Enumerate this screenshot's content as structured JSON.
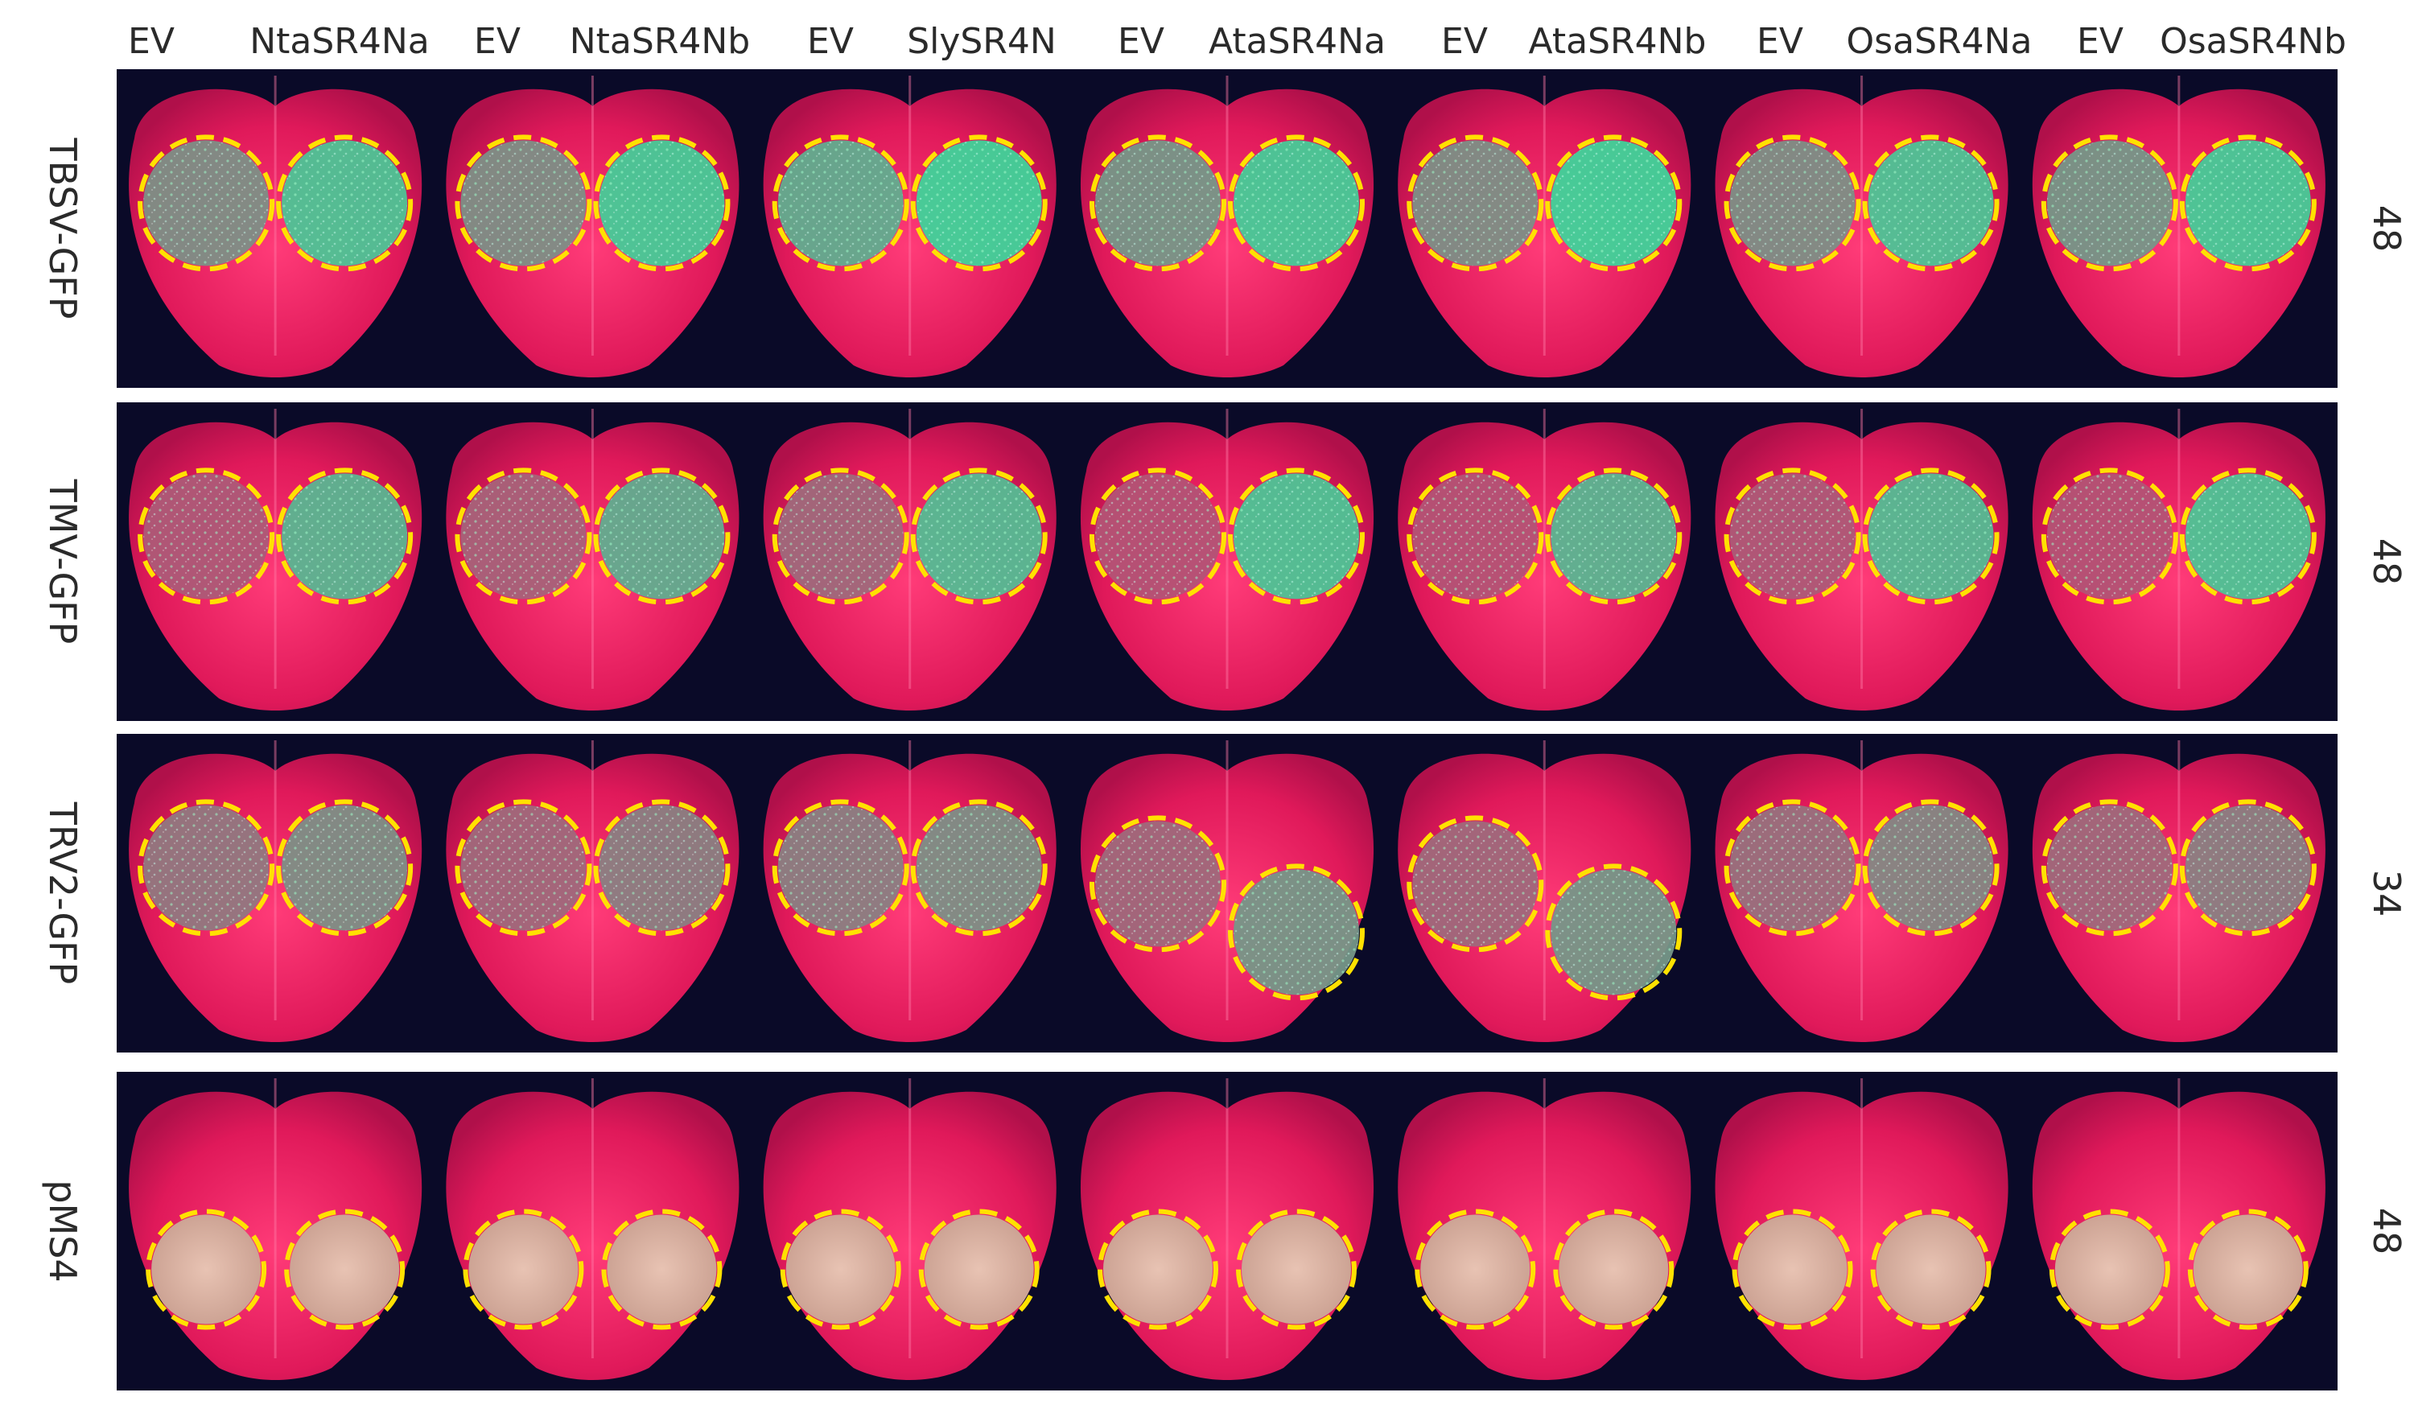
{
  "column_headers": [
    "EV",
    "NtaSR4Na",
    "EV",
    "NtaSR4Nb",
    "EV",
    "SlySR4N",
    "EV",
    "AtaSR4Na",
    "EV",
    "AtaSR4Nb",
    "EV",
    "OsaSR4Na",
    "EV",
    "OsaSR4Nb"
  ],
  "rows": [
    {
      "virus": "TBSV-GFP",
      "value": "48",
      "gfp_level": [
        0.55,
        0.55,
        0.75,
        0.6,
        0.55,
        0.55,
        0.6
      ],
      "right_gfp": [
        0.9,
        0.95,
        1.0,
        0.95,
        1.0,
        0.9,
        0.95
      ]
    },
    {
      "virus": "TMV-GFP",
      "value": "48",
      "gfp_level": [
        0.2,
        0.25,
        0.3,
        0.15,
        0.15,
        0.2,
        0.15
      ],
      "right_gfp": [
        0.8,
        0.75,
        0.85,
        0.9,
        0.8,
        0.85,
        0.9
      ]
    },
    {
      "virus": "TRV2-GFP",
      "value": "34",
      "gfp_level": [
        0.4,
        0.3,
        0.45,
        0.3,
        0.3,
        0.35,
        0.3
      ],
      "right_gfp": [
        0.55,
        0.45,
        0.55,
        0.6,
        0.6,
        0.5,
        0.45
      ]
    },
    {
      "virus": "pMS4",
      "value": "48",
      "gfp_level": [
        0,
        0,
        0,
        0,
        0,
        0,
        0
      ],
      "right_gfp": [
        0,
        0,
        0,
        0,
        0,
        0,
        0
      ]
    }
  ],
  "colors": {
    "background": "#0a0a28",
    "leaf": "#e0205a",
    "gfp": "#3fd39a",
    "pale_patch": "#d8b3a8",
    "circle": "#ffe100"
  }
}
